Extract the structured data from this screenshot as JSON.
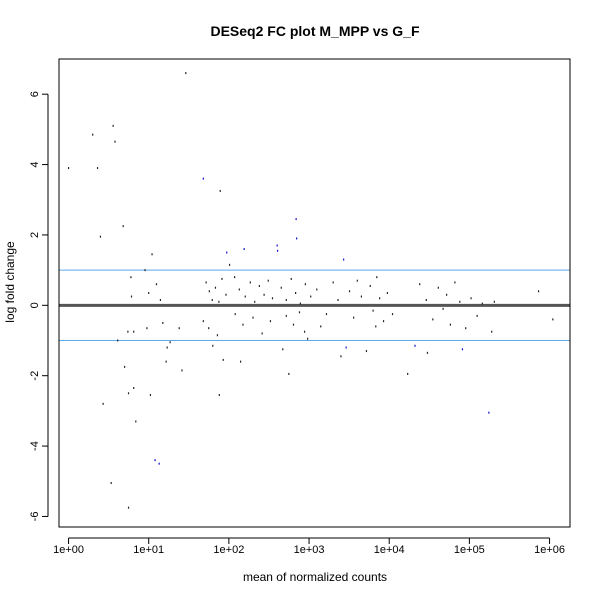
{
  "chart_data": {
    "type": "scatter",
    "title": "DESeq2 FC plot M_MPP vs G_F",
    "xlabel": "mean of normalized counts",
    "ylabel": "log fold change",
    "xscale": "log10",
    "xlim": [
      0.76,
      1800000.0
    ],
    "ylim": [
      -6.3,
      7.0
    ],
    "x_ticks": [
      {
        "value": 1,
        "label": "1e+00"
      },
      {
        "value": 10,
        "label": "1e+01"
      },
      {
        "value": 100,
        "label": "1e+02"
      },
      {
        "value": 1000,
        "label": "1e+03"
      },
      {
        "value": 10000,
        "label": "1e+04"
      },
      {
        "value": 100000,
        "label": "1e+05"
      },
      {
        "value": 1000000,
        "label": "1e+06"
      }
    ],
    "y_ticks": [
      {
        "value": -6,
        "label": "-6"
      },
      {
        "value": -4,
        "label": "-4"
      },
      {
        "value": -2,
        "label": "-2"
      },
      {
        "value": 0,
        "label": "0"
      },
      {
        "value": 2,
        "label": "2"
      },
      {
        "value": 4,
        "label": "4"
      },
      {
        "value": 6,
        "label": "6"
      }
    ],
    "reference_lines": [
      {
        "y": 0,
        "color": "#555555",
        "kind": "zero"
      },
      {
        "y": 1,
        "color": "#5aa9ea",
        "kind": "threshold"
      },
      {
        "y": -1,
        "color": "#5aa9ea",
        "kind": "threshold"
      }
    ],
    "grid": false,
    "colors": {
      "default": "#222222",
      "significant": "#1010cc"
    },
    "points": [
      {
        "x": 1.0,
        "y": 3.9
      },
      {
        "x": 2.0,
        "y": 4.85
      },
      {
        "x": 3.6,
        "y": 5.1
      },
      {
        "x": 3.8,
        "y": 4.65
      },
      {
        "x": 2.3,
        "y": 3.9
      },
      {
        "x": 2.5,
        "y": 1.95
      },
      {
        "x": 4.8,
        "y": 2.25
      },
      {
        "x": 5.0,
        "y": -1.75
      },
      {
        "x": 6.0,
        "y": 0.8
      },
      {
        "x": 6.1,
        "y": 0.25
      },
      {
        "x": 5.5,
        "y": -0.75
      },
      {
        "x": 6.5,
        "y": -0.75
      },
      {
        "x": 5.6,
        "y": -2.5
      },
      {
        "x": 6.5,
        "y": -2.35
      },
      {
        "x": 2.7,
        "y": -2.8
      },
      {
        "x": 6.9,
        "y": -3.3
      },
      {
        "x": 3.4,
        "y": -5.05
      },
      {
        "x": 5.6,
        "y": -5.75
      },
      {
        "x": 13.5,
        "y": -4.5,
        "sig": true
      },
      {
        "x": 12.0,
        "y": -4.4,
        "sig": true
      },
      {
        "x": 10.5,
        "y": -2.55
      },
      {
        "x": 4.1,
        "y": -1.0
      },
      {
        "x": 9.0,
        "y": 1.0
      },
      {
        "x": 11.0,
        "y": 1.45
      },
      {
        "x": 10.0,
        "y": 0.35
      },
      {
        "x": 12.5,
        "y": 0.6
      },
      {
        "x": 14.0,
        "y": 0.15
      },
      {
        "x": 9.5,
        "y": -0.65
      },
      {
        "x": 15.0,
        "y": -0.5
      },
      {
        "x": 17.0,
        "y": -1.2
      },
      {
        "x": 16.5,
        "y": -1.6
      },
      {
        "x": 18.5,
        "y": -1.05
      },
      {
        "x": 24.0,
        "y": -0.65
      },
      {
        "x": 26.0,
        "y": -1.85
      },
      {
        "x": 29.0,
        "y": 6.6
      },
      {
        "x": 48.0,
        "y": 3.6,
        "sig": true
      },
      {
        "x": 78.0,
        "y": 3.25
      },
      {
        "x": 52.0,
        "y": 0.65
      },
      {
        "x": 57.0,
        "y": 0.4
      },
      {
        "x": 62.0,
        "y": 0.15
      },
      {
        "x": 68.0,
        "y": 0.5
      },
      {
        "x": 75.0,
        "y": 0.1
      },
      {
        "x": 82.0,
        "y": 0.75
      },
      {
        "x": 92.0,
        "y": 0.3
      },
      {
        "x": 48.0,
        "y": -0.45
      },
      {
        "x": 56.0,
        "y": -0.65
      },
      {
        "x": 63.0,
        "y": -1.15
      },
      {
        "x": 72.0,
        "y": -0.85
      },
      {
        "x": 85.0,
        "y": -1.55
      },
      {
        "x": 76.0,
        "y": -2.55
      },
      {
        "x": 94.0,
        "y": 1.5,
        "sig": true
      },
      {
        "x": 102.0,
        "y": 1.15
      },
      {
        "x": 155.0,
        "y": 1.6,
        "sig": true
      },
      {
        "x": 118.0,
        "y": 0.8
      },
      {
        "x": 135.0,
        "y": 0.45
      },
      {
        "x": 160.0,
        "y": 0.25
      },
      {
        "x": 185.0,
        "y": 0.65
      },
      {
        "x": 210.0,
        "y": 0.1
      },
      {
        "x": 240.0,
        "y": 0.55
      },
      {
        "x": 275.0,
        "y": 0.3
      },
      {
        "x": 310.0,
        "y": 0.7
      },
      {
        "x": 350.0,
        "y": 0.2
      },
      {
        "x": 400.0,
        "y": 1.7,
        "sig": true
      },
      {
        "x": 405.0,
        "y": 1.55,
        "sig": true
      },
      {
        "x": 120.0,
        "y": -0.25
      },
      {
        "x": 150.0,
        "y": -0.55
      },
      {
        "x": 200.0,
        "y": -0.35
      },
      {
        "x": 260.0,
        "y": -0.8
      },
      {
        "x": 330.0,
        "y": -0.45
      },
      {
        "x": 140.0,
        "y": -1.6
      },
      {
        "x": 560.0,
        "y": -1.95
      },
      {
        "x": 470.0,
        "y": -1.25
      },
      {
        "x": 690.0,
        "y": 2.45,
        "sig": true
      },
      {
        "x": 700.0,
        "y": 1.9,
        "sig": true
      },
      {
        "x": 450.0,
        "y": 0.5
      },
      {
        "x": 520.0,
        "y": 0.15
      },
      {
        "x": 600.0,
        "y": 0.75
      },
      {
        "x": 680.0,
        "y": 0.35
      },
      {
        "x": 780.0,
        "y": 0.05
      },
      {
        "x": 900.0,
        "y": 0.6
      },
      {
        "x": 1050.0,
        "y": 0.25
      },
      {
        "x": 1250.0,
        "y": 0.45
      },
      {
        "x": 520.0,
        "y": -0.3
      },
      {
        "x": 640.0,
        "y": -0.55
      },
      {
        "x": 760.0,
        "y": -0.2
      },
      {
        "x": 880.0,
        "y": -0.75
      },
      {
        "x": 960.0,
        "y": -0.95
      },
      {
        "x": 1400.0,
        "y": -0.6
      },
      {
        "x": 1650.0,
        "y": -0.25
      },
      {
        "x": 2000.0,
        "y": 0.65
      },
      {
        "x": 2300.0,
        "y": 0.15
      },
      {
        "x": 2700.0,
        "y": 1.3,
        "sig": true
      },
      {
        "x": 2900.0,
        "y": -1.2,
        "sig": true
      },
      {
        "x": 2500.0,
        "y": -1.45
      },
      {
        "x": 3200.0,
        "y": 0.4
      },
      {
        "x": 3600.0,
        "y": -0.35
      },
      {
        "x": 4000.0,
        "y": 0.7
      },
      {
        "x": 4500.0,
        "y": 0.25
      },
      {
        "x": 5200.0,
        "y": -1.3
      },
      {
        "x": 5800.0,
        "y": 0.55
      },
      {
        "x": 6300.0,
        "y": -0.15
      },
      {
        "x": 7000.0,
        "y": 0.8
      },
      {
        "x": 7600.0,
        "y": 0.2
      },
      {
        "x": 8500.0,
        "y": -0.45
      },
      {
        "x": 9500.0,
        "y": 0.35
      },
      {
        "x": 11000.0,
        "y": -0.25
      },
      {
        "x": 6800.0,
        "y": -0.6
      },
      {
        "x": 21000.0,
        "y": -1.15,
        "sig": true
      },
      {
        "x": 30000.0,
        "y": -1.35
      },
      {
        "x": 17000.0,
        "y": -1.95
      },
      {
        "x": 24000.0,
        "y": 0.6
      },
      {
        "x": 29000.0,
        "y": 0.15
      },
      {
        "x": 35000.0,
        "y": -0.4
      },
      {
        "x": 41000.0,
        "y": 0.5
      },
      {
        "x": 47000.0,
        "y": -0.1
      },
      {
        "x": 52000.0,
        "y": 0.3
      },
      {
        "x": 58000.0,
        "y": -0.55
      },
      {
        "x": 66000.0,
        "y": 0.65
      },
      {
        "x": 76000.0,
        "y": 0.1
      },
      {
        "x": 82000.0,
        "y": -1.25,
        "sig": true
      },
      {
        "x": 90000.0,
        "y": -0.65
      },
      {
        "x": 105000.0,
        "y": 0.2
      },
      {
        "x": 125000.0,
        "y": -0.3
      },
      {
        "x": 145000.0,
        "y": 0.05
      },
      {
        "x": 175000.0,
        "y": -3.05,
        "sig": true
      },
      {
        "x": 190000.0,
        "y": -0.75
      },
      {
        "x": 205000.0,
        "y": 0.1
      },
      {
        "x": 730000.0,
        "y": 0.4
      },
      {
        "x": 1100000.0,
        "y": -0.4
      }
    ]
  }
}
